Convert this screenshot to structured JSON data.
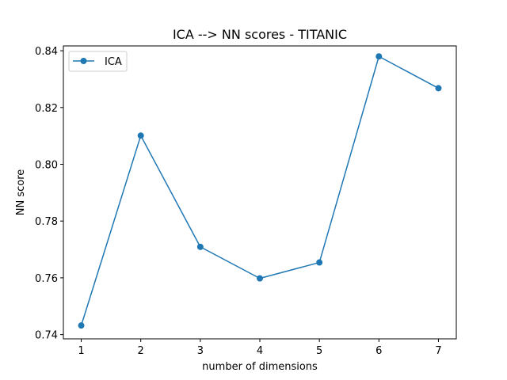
{
  "chart_data": {
    "type": "line",
    "title": "ICA --> NN scores - TITANIC",
    "xlabel": "number of dimensions",
    "ylabel": "NN score",
    "x": [
      1,
      2,
      3,
      4,
      5,
      6,
      7
    ],
    "series": [
      {
        "name": "ICA",
        "color": "#1f77b4",
        "marker": "circle",
        "values": [
          0.7432,
          0.8101,
          0.7709,
          0.7598,
          0.7654,
          0.838,
          0.8268
        ]
      }
    ],
    "xticks": [
      "1",
      "2",
      "3",
      "4",
      "5",
      "6",
      "7"
    ],
    "yticks": [
      0.74,
      0.76,
      0.78,
      0.8,
      0.82,
      0.84
    ],
    "ytick_labels": [
      "0.74",
      "0.76",
      "0.78",
      "0.80",
      "0.82",
      "0.84"
    ],
    "xlim": [
      0.7,
      7.3
    ],
    "ylim": [
      0.7385,
      0.8417
    ],
    "grid": false,
    "legend_position": "upper-left"
  }
}
